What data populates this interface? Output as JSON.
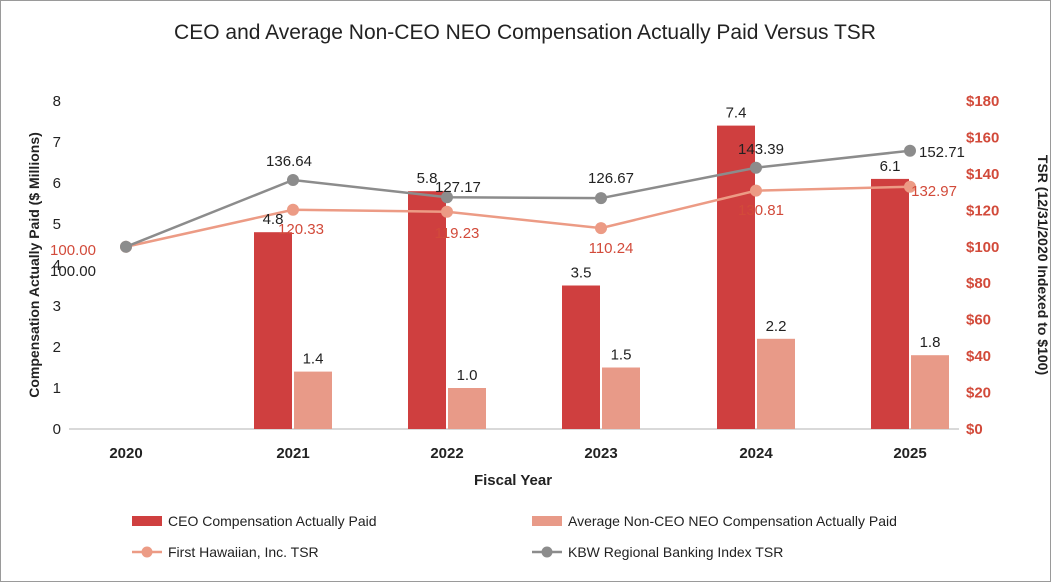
{
  "chart_data": {
    "type": "bar",
    "title": "CEO and Average Non-CEO NEO Compensation Actually Paid Versus TSR",
    "xlabel": "Fiscal Year",
    "ylabel": "Compensation Actually Paid ($ Millions)",
    "y2label": "TSR (12/31/2020 Indexed to $100)",
    "categories": [
      "2020",
      "2021",
      "2022",
      "2023",
      "2024",
      "2025"
    ],
    "ylim": [
      0,
      8
    ],
    "y_ticks": [
      "0",
      "1",
      "2",
      "3",
      "4",
      "5",
      "6",
      "7",
      "8"
    ],
    "y2lim": [
      0,
      180
    ],
    "y2_ticks": [
      "$0",
      "$20",
      "$40",
      "$60",
      "$80",
      "$100",
      "$120",
      "$140",
      "$160",
      "$180"
    ],
    "grid": false,
    "legend_position": "bottom",
    "series": [
      {
        "name": "CEO Compensation Actually Paid",
        "kind": "bar",
        "axis": "left",
        "color": "#cf3f3f",
        "values": [
          null,
          4.8,
          5.8,
          3.5,
          7.4,
          6.1
        ],
        "labels": [
          "",
          "4.8",
          "5.8",
          "3.5",
          "7.4",
          "6.1"
        ]
      },
      {
        "name": "Average Non-CEO NEO Compensation Actually Paid",
        "kind": "bar",
        "axis": "left",
        "color": "#e89a88",
        "values": [
          null,
          1.4,
          1.0,
          1.5,
          2.2,
          1.8
        ],
        "labels": [
          "",
          "1.4",
          "1.0",
          "1.5",
          "2.2",
          "1.8"
        ]
      },
      {
        "name": "First Hawaiian, Inc. TSR",
        "kind": "line",
        "axis": "right",
        "color": "#ec9b85",
        "label_color": "#d24a3a",
        "values": [
          100.0,
          120.33,
          119.23,
          110.24,
          130.81,
          132.97
        ],
        "labels": [
          "100.00",
          "120.33",
          "119.23",
          "110.24",
          "130.81",
          "132.97"
        ]
      },
      {
        "name": "KBW Regional Banking Index TSR",
        "kind": "line",
        "axis": "right",
        "color": "#8c8c8c",
        "label_color": "#222222",
        "values": [
          100.0,
          136.64,
          127.17,
          126.67,
          143.39,
          152.71
        ],
        "labels": [
          "100.00",
          "136.64",
          "127.17",
          "126.67",
          "143.39",
          "152.71"
        ]
      }
    ]
  },
  "colors": {
    "right_axis_text": "#d24a3a",
    "axis_line": "#b3b3b3",
    "text": "#222222"
  }
}
